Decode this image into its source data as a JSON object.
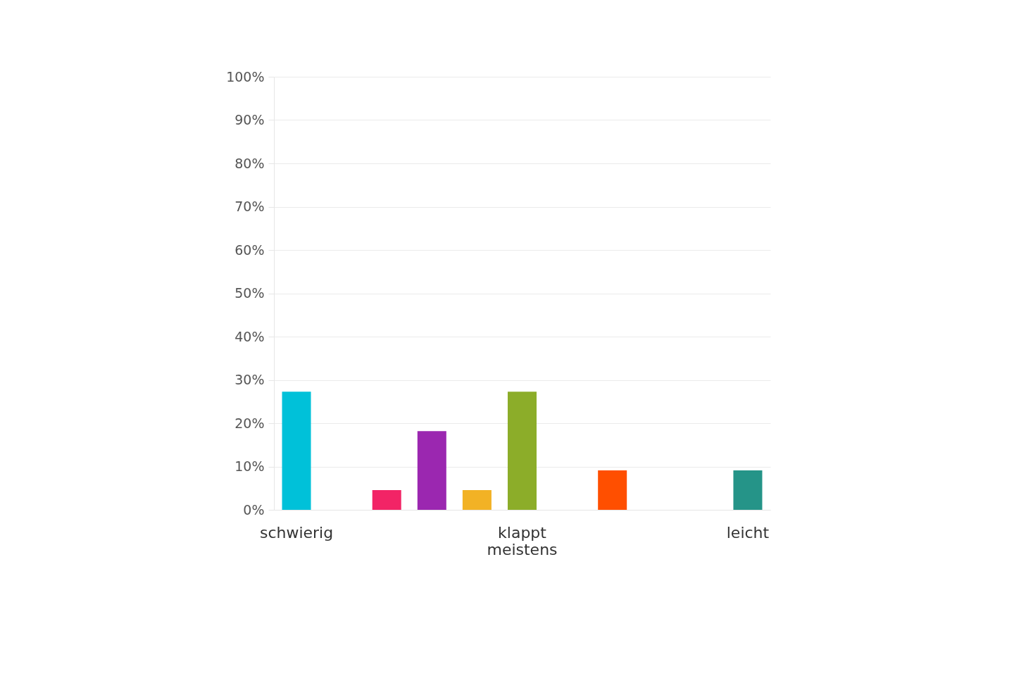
{
  "chart_data": {
    "type": "bar",
    "categories": [
      "schwierig",
      null,
      null,
      null,
      null,
      "klappt meistens",
      null,
      null,
      null,
      null,
      "leicht"
    ],
    "values": [
      27.27,
      0,
      4.55,
      18.18,
      4.55,
      27.27,
      0,
      9.09,
      0,
      0,
      9.09
    ],
    "colors": [
      "#00c1d9",
      "#c5cae9",
      "#f22466",
      "#9b27b0",
      "#f2b225",
      "#8cad29",
      "#f8bbd0",
      "#ff4f00",
      "#ffe0b2",
      "#d7ccc8",
      "#259488"
    ],
    "ylim": [
      0,
      100
    ],
    "yticks": [
      {
        "value": 0,
        "label": "0%"
      },
      {
        "value": 10,
        "label": "10%"
      },
      {
        "value": 20,
        "label": "20%"
      },
      {
        "value": 30,
        "label": "30%"
      },
      {
        "value": 40,
        "label": "40%"
      },
      {
        "value": 50,
        "label": "50%"
      },
      {
        "value": 60,
        "label": "60%"
      },
      {
        "value": 70,
        "label": "70%"
      },
      {
        "value": 80,
        "label": "80%"
      },
      {
        "value": 90,
        "label": "90%"
      },
      {
        "value": 100,
        "label": "100%"
      }
    ],
    "grid": "y"
  }
}
